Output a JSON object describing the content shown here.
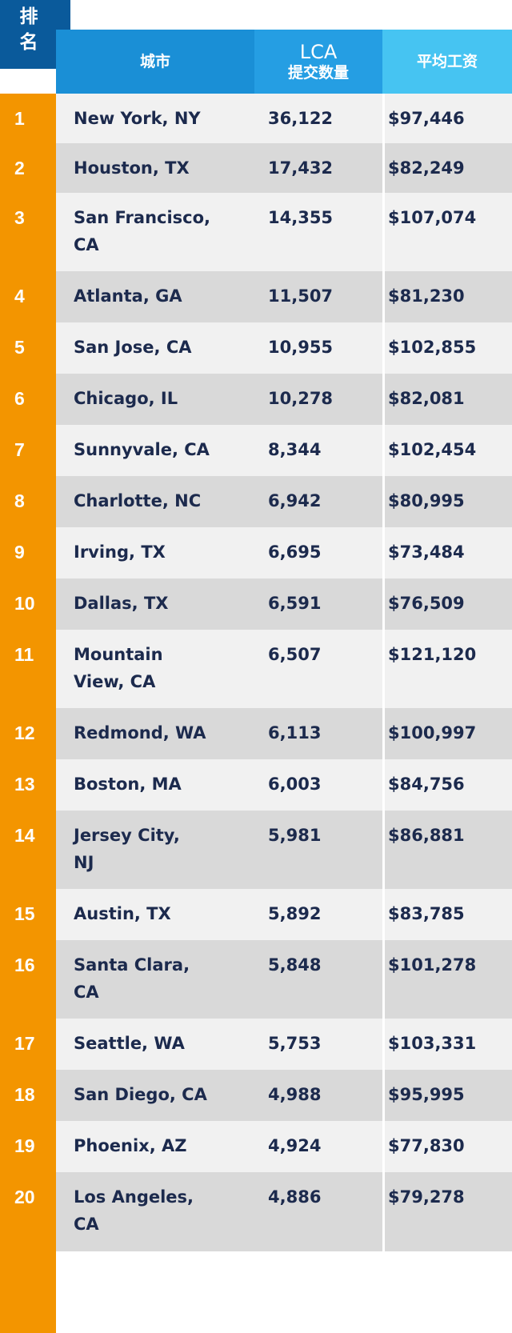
{
  "header": {
    "rank_label_1": "排",
    "rank_label_2": "名",
    "city_label": "城市",
    "lca_label_1": "LCA",
    "lca_label_2": "提交数量",
    "salary_label": "平均工资"
  },
  "rows": [
    {
      "rank": "1",
      "city_1": "New York, NY",
      "city_2": "",
      "lca": "36,122",
      "salary": "$97,446"
    },
    {
      "rank": "2",
      "city_1": "Houston, TX",
      "city_2": "",
      "lca": "17,432",
      "salary": "$82,249"
    },
    {
      "rank": "3",
      "city_1": "San Francisco,",
      "city_2": "CA",
      "lca": "14,355",
      "salary": "$107,074"
    },
    {
      "rank": "4",
      "city_1": "Atlanta, GA",
      "city_2": "",
      "lca": "11,507",
      "salary": "$81,230"
    },
    {
      "rank": "5",
      "city_1": "San Jose, CA",
      "city_2": "",
      "lca": "10,955",
      "salary": "$102,855"
    },
    {
      "rank": "6",
      "city_1": "Chicago, IL",
      "city_2": "",
      "lca": "10,278",
      "salary": "$82,081"
    },
    {
      "rank": "7",
      "city_1": "Sunnyvale, CA",
      "city_2": "",
      "lca": "8,344",
      "salary": "$102,454"
    },
    {
      "rank": "8",
      "city_1": "Charlotte, NC",
      "city_2": "",
      "lca": "6,942",
      "salary": "$80,995"
    },
    {
      "rank": "9",
      "city_1": "Irving, TX",
      "city_2": "",
      "lca": "6,695",
      "salary": "$73,484"
    },
    {
      "rank": "10",
      "city_1": "Dallas, TX",
      "city_2": "",
      "lca": "6,591",
      "salary": "$76,509"
    },
    {
      "rank": "11",
      "city_1": "Mountain",
      "city_2": "View, CA",
      "lca": "6,507",
      "salary": "$121,120"
    },
    {
      "rank": "12",
      "city_1": "Redmond, WA",
      "city_2": "",
      "lca": "6,113",
      "salary": "$100,997"
    },
    {
      "rank": "13",
      "city_1": "Boston, MA",
      "city_2": "",
      "lca": "6,003",
      "salary": "$84,756"
    },
    {
      "rank": "14",
      "city_1": "Jersey City,",
      "city_2": "NJ",
      "lca": "5,981",
      "salary": "$86,881"
    },
    {
      "rank": "15",
      "city_1": "Austin, TX",
      "city_2": "",
      "lca": "5,892",
      "salary": "$83,785"
    },
    {
      "rank": "16",
      "city_1": "Santa Clara,",
      "city_2": "CA",
      "lca": "5,848",
      "salary": "$101,278"
    },
    {
      "rank": "17",
      "city_1": "Seattle, WA",
      "city_2": "",
      "lca": "5,753",
      "salary": "$103,331"
    },
    {
      "rank": "18",
      "city_1": "San Diego, CA",
      "city_2": "",
      "lca": "4,988",
      "salary": "$95,995"
    },
    {
      "rank": "19",
      "city_1": "Phoenix, AZ",
      "city_2": "",
      "lca": "4,924",
      "salary": "$77,830"
    },
    {
      "rank": "20",
      "city_1": "Los Angeles,",
      "city_2": "CA",
      "lca": "4,886",
      "salary": "$79,278"
    }
  ],
  "colors": {
    "rank_header": "#0a5a9b",
    "city_header": "#1a8fd6",
    "lca_header": "#259ee3",
    "salary_header": "#46c4f2",
    "rank_strip": "#f39500",
    "row_light": "#f1f1f1",
    "row_dark": "#d9d9d9",
    "text": "#1c2a4d"
  }
}
